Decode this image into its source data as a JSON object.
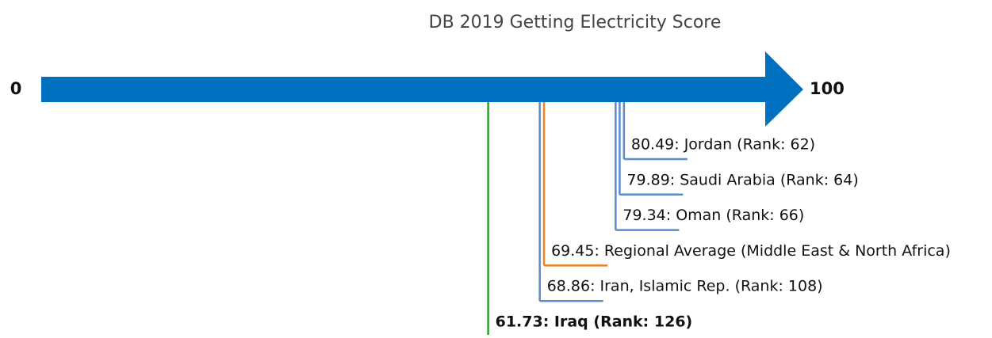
{
  "chart_data": {
    "type": "number-line",
    "title": "DB 2019 Getting Electricity Score",
    "xlim": [
      0,
      100
    ],
    "xticks": [
      0,
      100
    ],
    "arrow_color": "#0070c0",
    "values": [
      80.49,
      79.89,
      79.34,
      69.45,
      68.86,
      61.73
    ],
    "value_labels": [
      "80.49: Jordan (Rank: 62)",
      "79.89: Saudi Arabia (Rank: 64)",
      "79.34: Oman (Rank: 66)",
      "69.45: Regional Average (Middle East & North Africa)",
      "68.86: Iran, Islamic Rep. (Rank: 108)",
      "61.73: Iraq (Rank: 126)"
    ],
    "colors": [
      "#5b8bc9",
      "#5b8bc9",
      "#5b8bc9",
      "#f0821e",
      "#5b8bc9",
      "#2ca02c"
    ],
    "bold": [
      false,
      false,
      false,
      false,
      false,
      true
    ]
  }
}
